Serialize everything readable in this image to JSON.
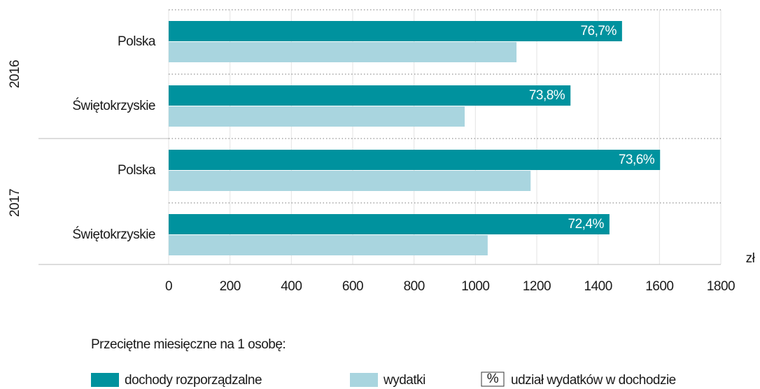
{
  "chart_data": {
    "type": "bar",
    "orientation": "horizontal",
    "categories": [
      "Polska",
      "Świętokrzyskie",
      "Polska",
      "Świętokrzyskie"
    ],
    "groups": [
      "2016",
      "2017"
    ],
    "series": [
      {
        "name": "dochody rozporządzalne",
        "color": "#00929e",
        "values": [
          1478,
          1310,
          1602,
          1437
        ]
      },
      {
        "name": "wydatki",
        "color": "#a9d5df",
        "values": [
          1134,
          965,
          1180,
          1040
        ]
      }
    ],
    "shares": {
      "name": "udział wydatków w dochodzie",
      "symbol": "%",
      "values": [
        76.7,
        73.8,
        73.6,
        72.4
      ],
      "value_labels": [
        "76,7%",
        "73,8%",
        "73,6%",
        "72,4%"
      ]
    },
    "legend_title": "Przeciętne miesięczne na 1 osobę:",
    "x_label": "zł",
    "xlim": [
      0,
      1800
    ],
    "xticks": [
      0,
      200,
      400,
      600,
      800,
      1000,
      1200,
      1400,
      1600,
      1800
    ],
    "grid": true
  }
}
